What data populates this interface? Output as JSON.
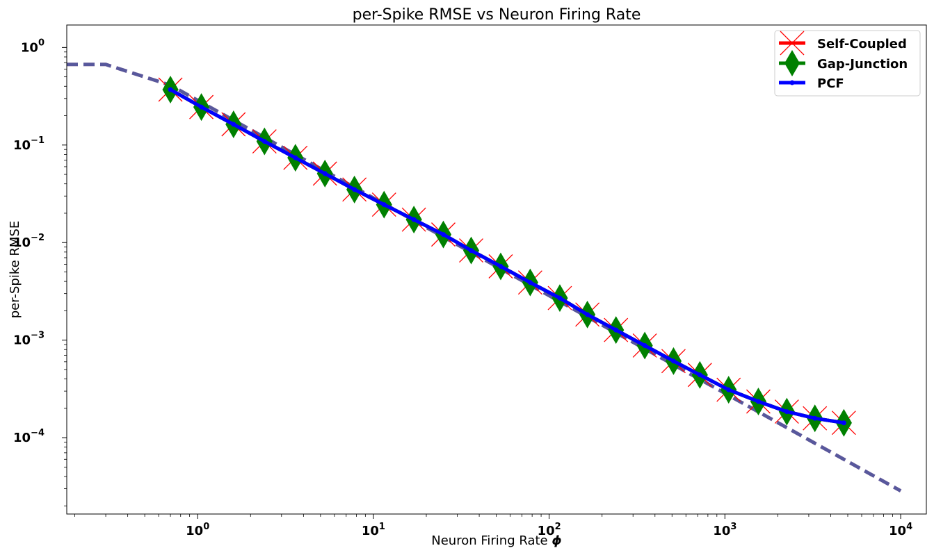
{
  "chart_data": {
    "type": "line",
    "title": "per-Spike RMSE vs Neuron Firing Rate",
    "xlabel": "Neuron Firing Rate",
    "xlabel_symbol": "ϕ",
    "ylabel": "per-Spike RMSE",
    "xscale": "log",
    "yscale": "log",
    "xlim": [
      0.18,
      14000
    ],
    "ylim": [
      1.65e-05,
      1.7
    ],
    "grid": false,
    "legend_position": "top-right",
    "x_ticks": [
      {
        "value": 1,
        "base": "10",
        "exp": "0"
      },
      {
        "value": 10,
        "base": "10",
        "exp": "1"
      },
      {
        "value": 100,
        "base": "10",
        "exp": "2"
      },
      {
        "value": 1000,
        "base": "10",
        "exp": "3"
      },
      {
        "value": 10000,
        "base": "10",
        "exp": "4"
      }
    ],
    "y_ticks": [
      {
        "value": 1,
        "base": "10",
        "exp": "0"
      },
      {
        "value": 0.1,
        "base": "10",
        "exp": "−1"
      },
      {
        "value": 0.01,
        "base": "10",
        "exp": "−2"
      },
      {
        "value": 0.001,
        "base": "10",
        "exp": "−3"
      },
      {
        "value": 0.0001,
        "base": "10",
        "exp": "−4"
      }
    ],
    "x": [
      0.7,
      1.05,
      1.6,
      2.4,
      3.6,
      5.3,
      7.8,
      11.5,
      17,
      25,
      36,
      53,
      78,
      115,
      165,
      240,
      350,
      510,
      720,
      1050,
      1550,
      2250,
      3250,
      4750
    ],
    "series": [
      {
        "name": "Self-Coupled",
        "color": "#ff0000",
        "marker": "x",
        "values": [
          0.37,
          0.245,
          0.163,
          0.109,
          0.074,
          0.051,
          0.035,
          0.0245,
          0.0172,
          0.0121,
          0.0083,
          0.0057,
          0.0039,
          0.0027,
          0.00183,
          0.00127,
          0.00088,
          0.00061,
          0.00044,
          0.00031,
          0.000235,
          0.000185,
          0.000158,
          0.000142
        ]
      },
      {
        "name": "Gap-Junction",
        "color": "#008000",
        "marker": "diamond",
        "values": [
          0.37,
          0.245,
          0.163,
          0.109,
          0.074,
          0.051,
          0.035,
          0.0245,
          0.0172,
          0.0121,
          0.0083,
          0.0057,
          0.0039,
          0.0027,
          0.00183,
          0.00127,
          0.00088,
          0.00061,
          0.00044,
          0.00031,
          0.000235,
          0.000185,
          0.000158,
          0.000142
        ]
      },
      {
        "name": "PCF",
        "color": "#0000ff",
        "marker": "dot",
        "values": [
          0.37,
          0.245,
          0.163,
          0.109,
          0.074,
          0.051,
          0.035,
          0.0245,
          0.0172,
          0.0121,
          0.0083,
          0.0057,
          0.0039,
          0.0027,
          0.00183,
          0.00127,
          0.00088,
          0.00061,
          0.00044,
          0.00031,
          0.000235,
          0.000185,
          0.000158,
          0.000142
        ]
      }
    ],
    "reference_line": {
      "style": "dashed",
      "color": "#3b4a9a",
      "x": [
        0.18,
        0.3,
        0.7,
        10000
      ],
      "y": [
        0.67,
        0.67,
        0.41,
        2.85e-05
      ]
    }
  }
}
